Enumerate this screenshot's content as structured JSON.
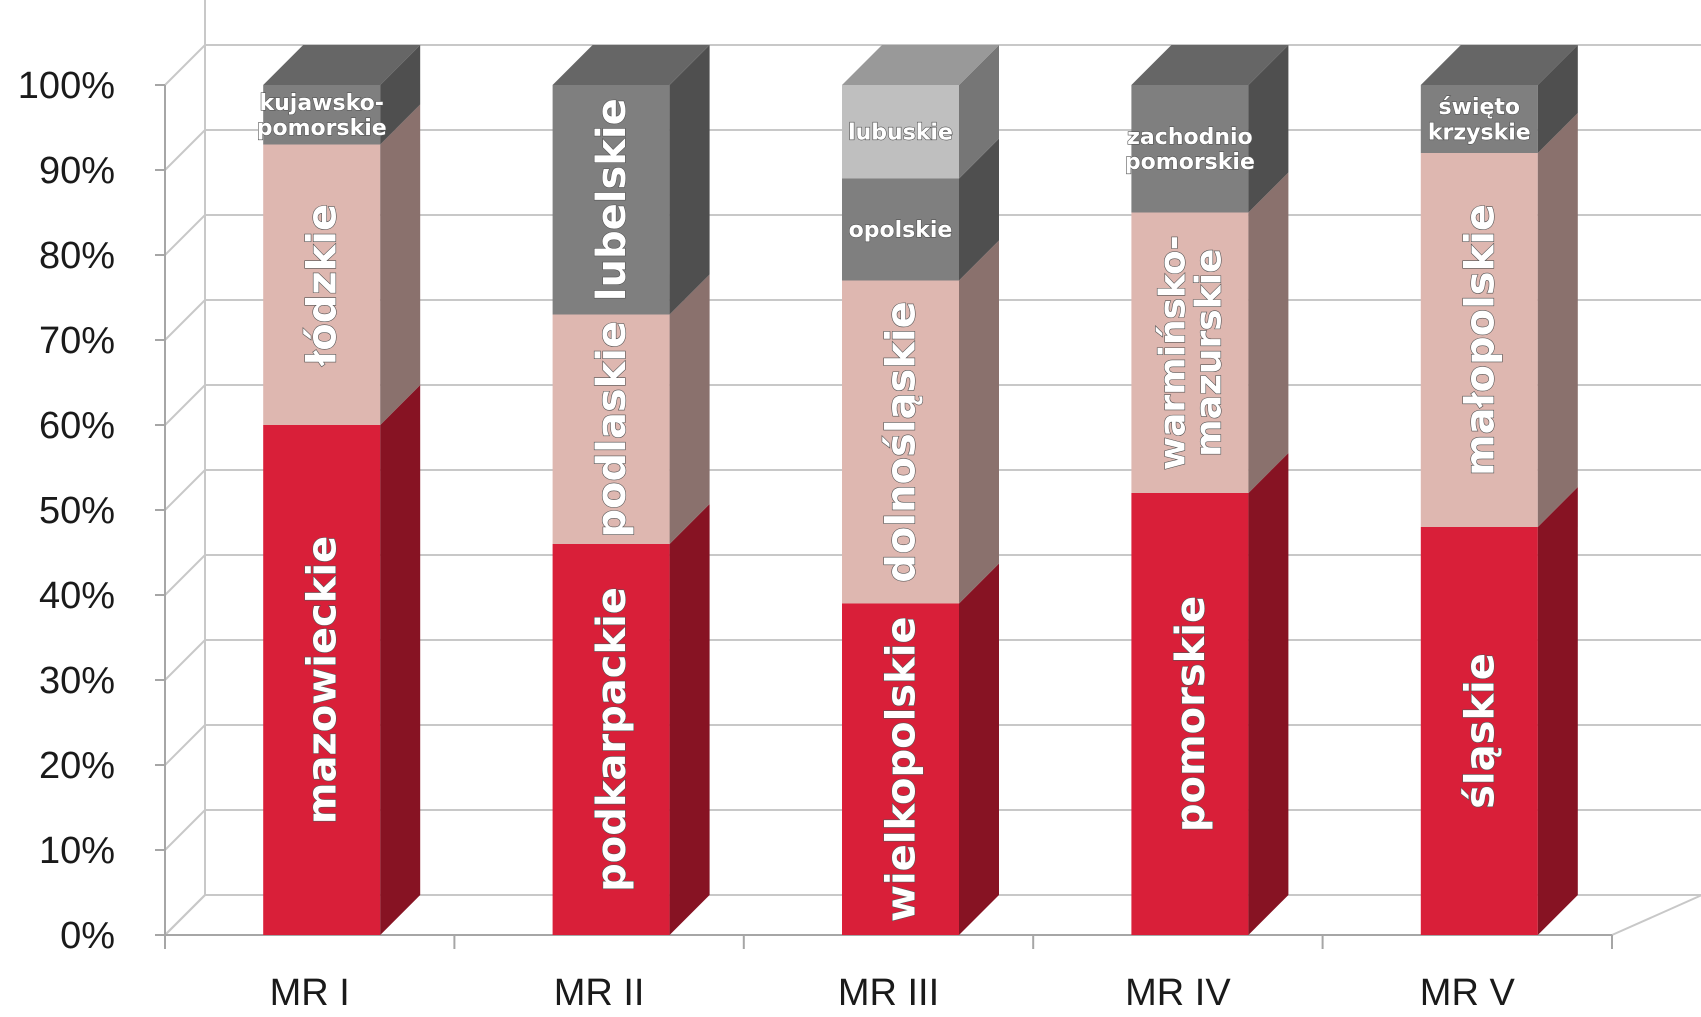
{
  "chart_data": {
    "type": "bar",
    "stacked": true,
    "three_d": true,
    "normalized_percent": true,
    "title": "",
    "xlabel": "",
    "ylabel": "",
    "ylim": [
      0,
      100
    ],
    "y_ticks": [
      "0%",
      "10%",
      "20%",
      "30%",
      "40%",
      "50%",
      "60%",
      "70%",
      "80%",
      "90%",
      "100%"
    ],
    "grid": true,
    "legend": "none",
    "categories": [
      "MR I",
      "MR II",
      "MR III",
      "MR IV",
      "MR V"
    ],
    "bars": [
      {
        "category": "MR I",
        "segments": [
          {
            "label": "mazowieckie",
            "value": 60,
            "color": "#d91f39",
            "label_orientation": "vertical"
          },
          {
            "label": "łódzkie",
            "value": 33,
            "color": "#deb7b0",
            "label_orientation": "vertical"
          },
          {
            "label": "kujawsko-pomorskie",
            "lines": [
              "kujawsko-",
              "pomorskie"
            ],
            "value": 7,
            "color": "#7f7f7f",
            "label_orientation": "horizontal"
          }
        ]
      },
      {
        "category": "MR II",
        "segments": [
          {
            "label": "podkarpackie",
            "value": 46,
            "color": "#d91f39",
            "label_orientation": "vertical"
          },
          {
            "label": "podlaskie",
            "value": 27,
            "color": "#deb7b0",
            "label_orientation": "vertical"
          },
          {
            "label": "lubelskie",
            "value": 27,
            "color": "#7f7f7f",
            "label_orientation": "vertical"
          }
        ]
      },
      {
        "category": "MR III",
        "segments": [
          {
            "label": "wielkopolskie",
            "value": 39,
            "color": "#d91f39",
            "label_orientation": "vertical"
          },
          {
            "label": "dolnośląskie",
            "value": 38,
            "color": "#deb7b0",
            "label_orientation": "vertical"
          },
          {
            "label": "opolskie",
            "value": 12,
            "color": "#7f7f7f",
            "label_orientation": "horizontal"
          },
          {
            "label": "lubuskie",
            "value": 11,
            "color": "#bfbfbf",
            "label_orientation": "horizontal"
          }
        ]
      },
      {
        "category": "MR IV",
        "segments": [
          {
            "label": "pomorskie",
            "value": 52,
            "color": "#d91f39",
            "label_orientation": "vertical"
          },
          {
            "label": "warmińsko-mazurskie",
            "lines": [
              "warmińsko-",
              "mazurskie"
            ],
            "value": 33,
            "color": "#deb7b0",
            "label_orientation": "vertical"
          },
          {
            "label": "zachodnio pomorskie",
            "lines": [
              "zachodnio",
              "pomorskie"
            ],
            "value": 15,
            "color": "#7f7f7f",
            "label_orientation": "horizontal"
          }
        ]
      },
      {
        "category": "MR V",
        "segments": [
          {
            "label": "śląskie",
            "value": 48,
            "color": "#d91f39",
            "label_orientation": "vertical"
          },
          {
            "label": "małopolskie",
            "value": 44,
            "color": "#deb7b0",
            "label_orientation": "vertical"
          },
          {
            "label": "święto krzyskie",
            "lines": [
              "święto",
              "krzyskie"
            ],
            "value": 8,
            "color": "#7f7f7f",
            "label_orientation": "horizontal"
          }
        ]
      }
    ]
  }
}
